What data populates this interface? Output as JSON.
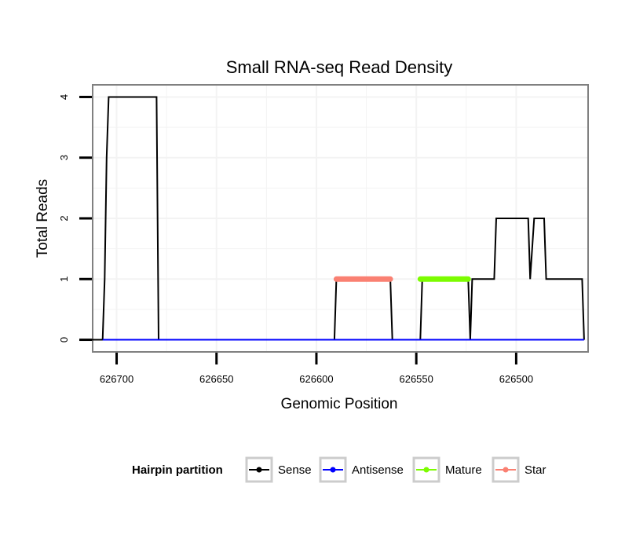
{
  "chart_data": {
    "type": "line",
    "title": "Small RNA-seq Read Density",
    "xlabel": "Genomic Position",
    "ylabel": "Total Reads",
    "x_reversed": true,
    "xlim": [
      626712,
      626464
    ],
    "ylim": [
      -0.2,
      4.2
    ],
    "x_ticks": [
      626700,
      626650,
      626600,
      626550,
      626500
    ],
    "x_tick_labels": [
      "626700",
      "626650",
      "626600",
      "626550",
      "626500"
    ],
    "y_ticks": [
      0,
      1,
      2,
      3,
      4
    ],
    "y_tick_labels": [
      "0",
      "1",
      "2",
      "3",
      "4"
    ],
    "grid": true,
    "legend": {
      "title": "Hairpin partition",
      "position": "bottom",
      "entries": [
        "Sense",
        "Antisense",
        "Mature",
        "Star"
      ]
    },
    "series": [
      {
        "name": "Sense",
        "color": "#000000",
        "points": [
          [
            626713,
            0
          ],
          [
            626707,
            0
          ],
          [
            626706,
            1
          ],
          [
            626705,
            3
          ],
          [
            626704,
            4
          ],
          [
            626680,
            4
          ],
          [
            626679,
            0
          ],
          [
            626591,
            0
          ],
          [
            626590,
            1
          ],
          [
            626563,
            1
          ],
          [
            626562,
            0
          ],
          [
            626548,
            0
          ],
          [
            626547,
            1
          ],
          [
            626524,
            1
          ],
          [
            626523,
            0
          ],
          [
            626522,
            1
          ],
          [
            626511,
            1
          ],
          [
            626510,
            2
          ],
          [
            626494,
            2
          ],
          [
            626493,
            1
          ],
          [
            626491,
            2
          ],
          [
            626486,
            2
          ],
          [
            626485,
            1
          ],
          [
            626467,
            1
          ],
          [
            626466,
            0
          ]
        ]
      },
      {
        "name": "Antisense",
        "color": "#0000ff",
        "points": [
          [
            626707,
            0
          ],
          [
            626466,
            0
          ]
        ]
      },
      {
        "name": "Mature",
        "color": "#7cfc00",
        "points": [
          [
            626548,
            1
          ],
          [
            626524,
            1
          ]
        ]
      },
      {
        "name": "Star",
        "color": "#fa8072",
        "points": [
          [
            626590,
            1
          ],
          [
            626563,
            1
          ]
        ]
      }
    ]
  }
}
